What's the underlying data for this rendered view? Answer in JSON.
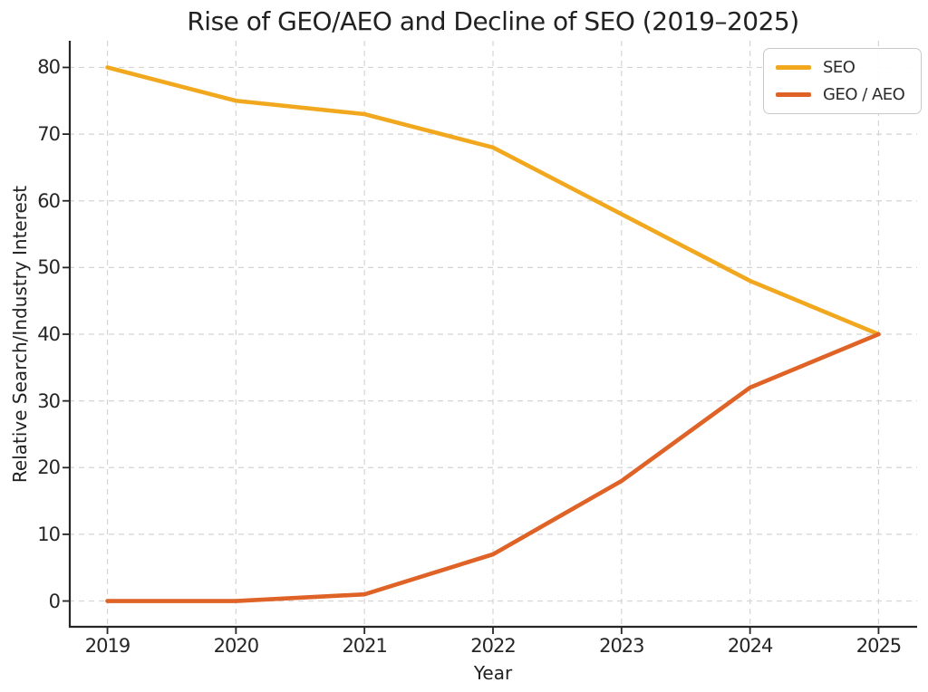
{
  "chart_data": {
    "type": "line",
    "title": "Rise of GEO/AEO and Decline of SEO (2019–2025)",
    "xlabel": "Year",
    "ylabel": "Relative Search/Industry Interest",
    "x": [
      2019,
      2020,
      2021,
      2022,
      2023,
      2024,
      2025
    ],
    "x_tick_labels": [
      "2019",
      "2020",
      "2021",
      "2022",
      "2023",
      "2024",
      "2025"
    ],
    "y_ticks": [
      0,
      10,
      20,
      30,
      40,
      50,
      60,
      70,
      80
    ],
    "y_tick_labels": [
      "0",
      "10",
      "20",
      "30",
      "40",
      "50",
      "60",
      "70",
      "80"
    ],
    "series": [
      {
        "name": "SEO",
        "color": "#F1A81E",
        "values": [
          80,
          75,
          73,
          68,
          58,
          48,
          40
        ]
      },
      {
        "name": "GEO / AEO",
        "color": "#DF6226",
        "values": [
          0,
          0,
          1,
          7,
          18,
          32,
          40
        ]
      }
    ],
    "xlim": [
      2018.7,
      2025.3
    ],
    "ylim": [
      -4,
      84
    ],
    "grid": "dashed",
    "grid_color": "#d4d4d4",
    "axis_color": "#262626",
    "background_color": "#ffffff",
    "legend_position": "upper right",
    "line_width": 4.6
  }
}
